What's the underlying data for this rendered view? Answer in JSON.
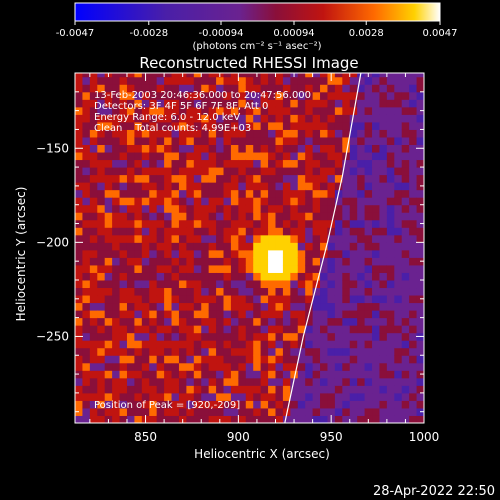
{
  "footer": {
    "timestamp": "28-Apr-2022 22:50"
  },
  "chart_data": {
    "type": "heatmap",
    "title": "Reconstructed RHESSI Image",
    "xlabel": "Heliocentric X (arcsec)",
    "ylabel": "Heliocentric Y (arcsec)",
    "xlim": [
      812,
      1000
    ],
    "ylim": [
      -296,
      -110
    ],
    "xticks": [
      850,
      900,
      950,
      1000
    ],
    "yticks": [
      -150,
      -200,
      -250
    ],
    "annotations": [
      "13-Feb-2003 20:46:36.000 to 20:47:56.000",
      "Detectors: 3F 4F 5F 6F 7F 8F, Att 0",
      "Energy Range: 6.0 - 12.0 keV",
      "Clean    Total counts: 4.99E+03"
    ],
    "peak_text": "Position of Peak = [920,-209]",
    "peak": [
      920,
      -209
    ],
    "limb_curve": [
      [
        925,
        -296
      ],
      [
        935,
        -250
      ],
      [
        948,
        -200
      ],
      [
        956,
        -165
      ],
      [
        966,
        -110
      ]
    ],
    "colorbar": {
      "min": -0.0047,
      "max": 0.0047,
      "tick_labels": [
        "-0.0047",
        "-0.0028",
        "-0.00094",
        "0.00094",
        "0.0028",
        "0.0047"
      ],
      "tick_values": [
        -0.0047,
        -0.0028,
        -0.00094,
        0.00094,
        0.0028,
        0.0047
      ],
      "unit_label": "(photons cm⁻² s⁻¹ asec⁻²)",
      "colors": [
        "#0000ff",
        "#4a1fa8",
        "#6a2290",
        "#8a0f3a",
        "#c01410",
        "#ff6a00",
        "#ffd100",
        "#ffffff"
      ]
    }
  }
}
